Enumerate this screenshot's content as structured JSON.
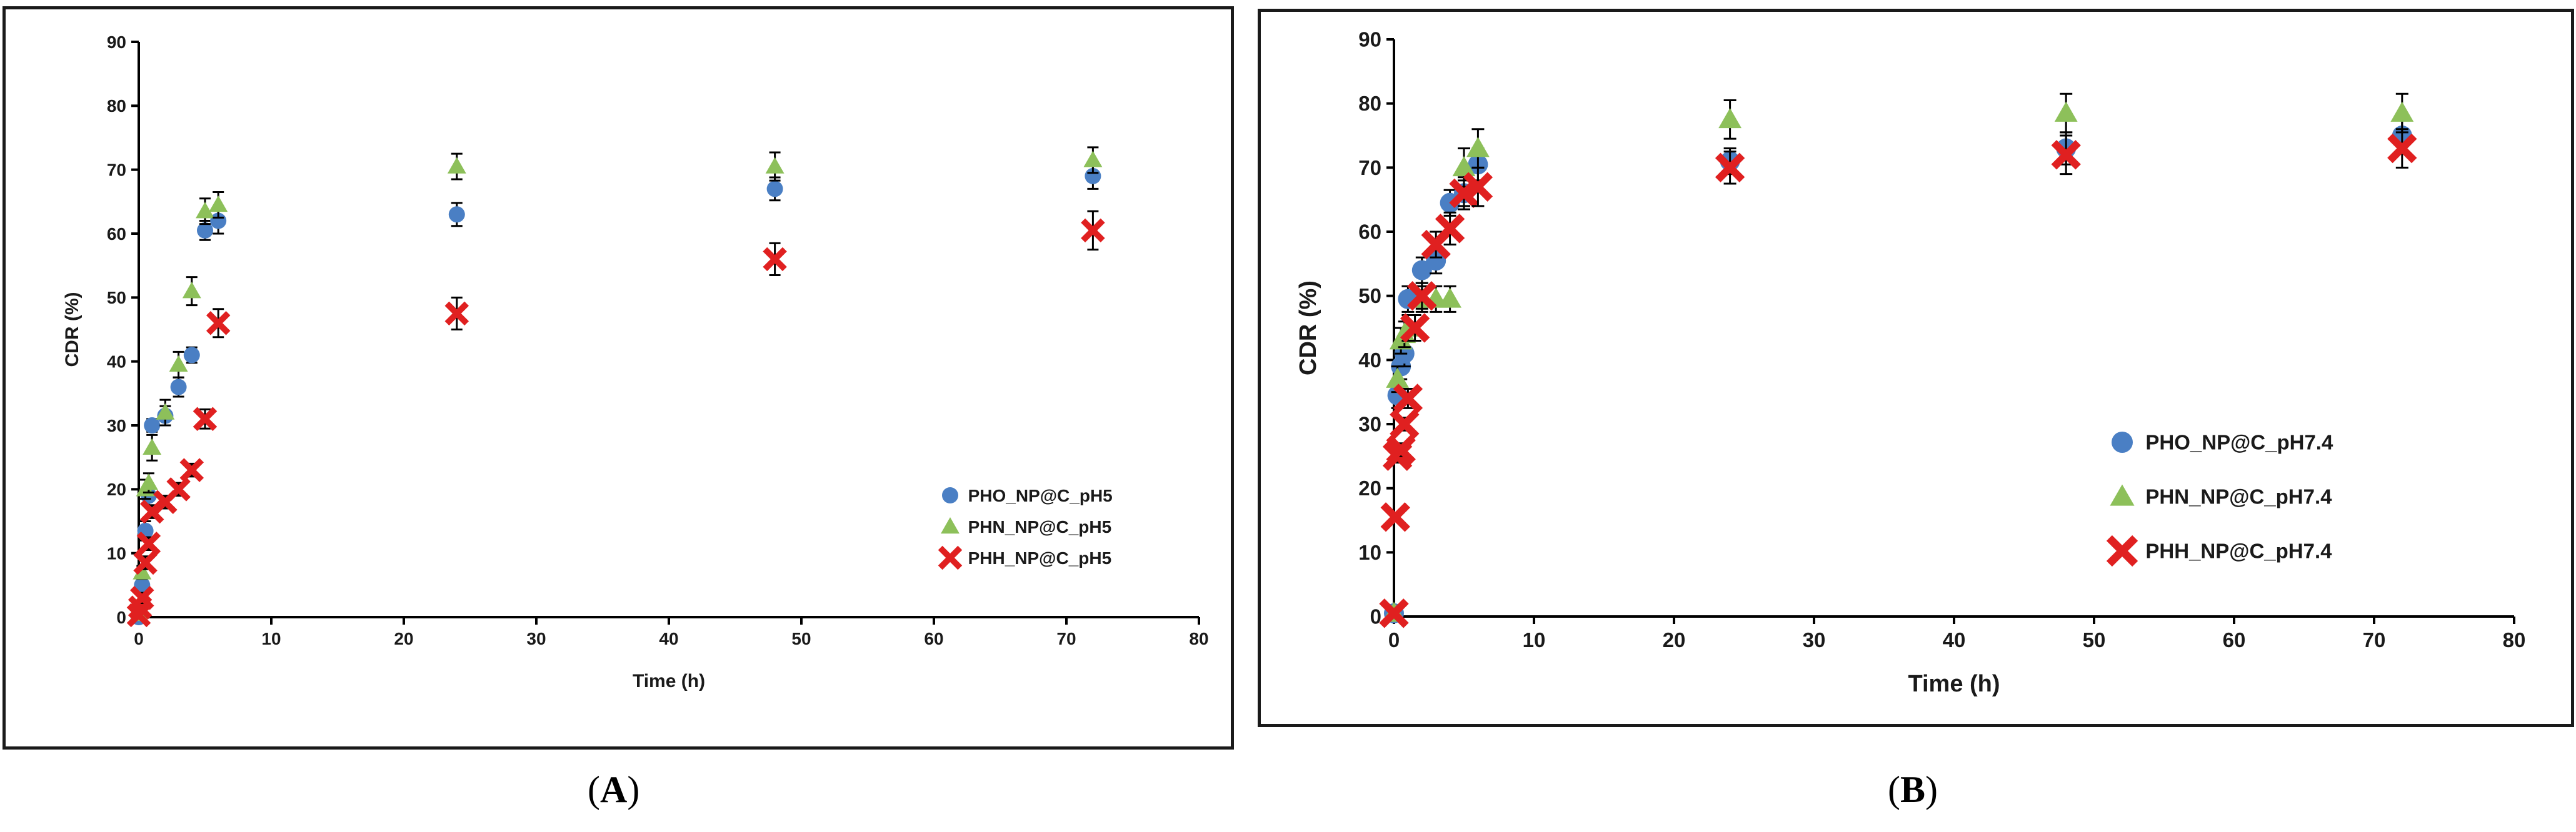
{
  "chart_data": [
    {
      "type": "scatter",
      "panel": "A",
      "xlabel": "Time (h)",
      "ylabel": "CDR (%)",
      "xlim": [
        0,
        80
      ],
      "ylim": [
        0,
        90
      ],
      "xticks": [
        0,
        10,
        20,
        30,
        40,
        50,
        60,
        70,
        80
      ],
      "yticks": [
        0,
        10,
        20,
        30,
        40,
        50,
        60,
        70,
        80,
        90
      ],
      "legend_position": "center-right",
      "series": [
        {
          "name": "PHO_NP@C_pH5",
          "marker": "circle",
          "color": "#4a7fc4",
          "points": [
            {
              "x": 0,
              "y": 0,
              "err": 0
            },
            {
              "x": 0.25,
              "y": 5,
              "err": 1
            },
            {
              "x": 0.5,
              "y": 13.5,
              "err": 1.5
            },
            {
              "x": 0.75,
              "y": 19,
              "err": 1.5
            },
            {
              "x": 1,
              "y": 30,
              "err": 1
            },
            {
              "x": 2,
              "y": 31.5,
              "err": 1.5
            },
            {
              "x": 3,
              "y": 36,
              "err": 1.5
            },
            {
              "x": 4,
              "y": 41,
              "err": 1.2
            },
            {
              "x": 5,
              "y": 60.5,
              "err": 1.5
            },
            {
              "x": 6,
              "y": 62,
              "err": 2
            },
            {
              "x": 24,
              "y": 63,
              "err": 1.8
            },
            {
              "x": 48,
              "y": 67,
              "err": 1.8
            },
            {
              "x": 72,
              "y": 69,
              "err": 2
            }
          ]
        },
        {
          "name": "PHN_NP@C_pH5",
          "marker": "triangle",
          "color": "#8dc05a",
          "points": [
            {
              "x": 0,
              "y": 0.5,
              "err": 0
            },
            {
              "x": 0.25,
              "y": 7,
              "err": 1
            },
            {
              "x": 0.5,
              "y": 20,
              "err": 1.5
            },
            {
              "x": 0.75,
              "y": 21,
              "err": 1.5
            },
            {
              "x": 1,
              "y": 26.5,
              "err": 2
            },
            {
              "x": 2,
              "y": 32,
              "err": 2
            },
            {
              "x": 3,
              "y": 39.5,
              "err": 2
            },
            {
              "x": 4,
              "y": 51,
              "err": 2.2
            },
            {
              "x": 5,
              "y": 63.5,
              "err": 2
            },
            {
              "x": 6,
              "y": 64.5,
              "err": 2
            },
            {
              "x": 24,
              "y": 70.5,
              "err": 2
            },
            {
              "x": 48,
              "y": 70.5,
              "err": 2.2
            },
            {
              "x": 72,
              "y": 71.5,
              "err": 2
            }
          ]
        },
        {
          "name": "PHH_NP@C_pH5",
          "marker": "x",
          "color": "#e02020",
          "points": [
            {
              "x": 0,
              "y": 0.3,
              "err": 0
            },
            {
              "x": 0.1,
              "y": 1.5,
              "err": 0.5
            },
            {
              "x": 0.25,
              "y": 3,
              "err": 0.8
            },
            {
              "x": 0.5,
              "y": 8.5,
              "err": 1
            },
            {
              "x": 0.75,
              "y": 11.5,
              "err": 1
            },
            {
              "x": 1,
              "y": 16.5,
              "err": 1
            },
            {
              "x": 2,
              "y": 18,
              "err": 1
            },
            {
              "x": 3,
              "y": 20,
              "err": 1
            },
            {
              "x": 4,
              "y": 23,
              "err": 1
            },
            {
              "x": 5,
              "y": 31,
              "err": 1.5
            },
            {
              "x": 6,
              "y": 46,
              "err": 2.2
            },
            {
              "x": 24,
              "y": 47.5,
              "err": 2.5
            },
            {
              "x": 48,
              "y": 56,
              "err": 2.5
            },
            {
              "x": 72,
              "y": 60.5,
              "err": 3
            }
          ]
        }
      ]
    },
    {
      "type": "scatter",
      "panel": "B",
      "xlabel": "Time (h)",
      "ylabel": "CDR (%)",
      "xlim": [
        0,
        80
      ],
      "ylim": [
        0,
        90
      ],
      "xticks": [
        0,
        10,
        20,
        30,
        40,
        50,
        60,
        70,
        80
      ],
      "yticks": [
        0,
        10,
        20,
        30,
        40,
        50,
        60,
        70,
        80,
        90
      ],
      "legend_position": "center-right",
      "series": [
        {
          "name": "PHO_NP@C_pH7.4",
          "marker": "circle",
          "color": "#4a7fc4",
          "points": [
            {
              "x": 0,
              "y": 0.5,
              "err": 0
            },
            {
              "x": 0.25,
              "y": 34.5,
              "err": 2
            },
            {
              "x": 0.5,
              "y": 39,
              "err": 2
            },
            {
              "x": 0.75,
              "y": 41,
              "err": 2
            },
            {
              "x": 1,
              "y": 49.5,
              "err": 2
            },
            {
              "x": 2,
              "y": 54,
              "err": 2
            },
            {
              "x": 3,
              "y": 55.5,
              "err": 2
            },
            {
              "x": 4,
              "y": 64.5,
              "err": 2
            },
            {
              "x": 5,
              "y": 66,
              "err": 2
            },
            {
              "x": 6,
              "y": 70.5,
              "err": 2.5
            },
            {
              "x": 24,
              "y": 71,
              "err": 2
            },
            {
              "x": 48,
              "y": 73,
              "err": 2.5
            },
            {
              "x": 72,
              "y": 75,
              "err": 2.5
            }
          ]
        },
        {
          "name": "PHN_NP@C_pH7.4",
          "marker": "triangle",
          "color": "#8dc05a",
          "points": [
            {
              "x": 0,
              "y": 0.5,
              "err": 0
            },
            {
              "x": 0.25,
              "y": 37,
              "err": 2
            },
            {
              "x": 0.5,
              "y": 43,
              "err": 2
            },
            {
              "x": 0.75,
              "y": 44,
              "err": 2
            },
            {
              "x": 1,
              "y": 45,
              "err": 2
            },
            {
              "x": 2,
              "y": 49.5,
              "err": 2
            },
            {
              "x": 3,
              "y": 49.5,
              "err": 2
            },
            {
              "x": 4,
              "y": 49.5,
              "err": 2
            },
            {
              "x": 5,
              "y": 70,
              "err": 3
            },
            {
              "x": 6,
              "y": 73,
              "err": 3
            },
            {
              "x": 24,
              "y": 77.5,
              "err": 3
            },
            {
              "x": 48,
              "y": 78.5,
              "err": 3
            },
            {
              "x": 72,
              "y": 78.5,
              "err": 3
            }
          ]
        },
        {
          "name": "PHH_NP@C_pH7.4",
          "marker": "x",
          "color": "#e02020",
          "points": [
            {
              "x": 0,
              "y": 0.5,
              "err": 0
            },
            {
              "x": 0.1,
              "y": 15.5,
              "err": 0.5
            },
            {
              "x": 0.25,
              "y": 25,
              "err": 1
            },
            {
              "x": 0.5,
              "y": 26,
              "err": 1
            },
            {
              "x": 0.75,
              "y": 30,
              "err": 1
            },
            {
              "x": 1,
              "y": 34,
              "err": 1.5
            },
            {
              "x": 1.5,
              "y": 45,
              "err": 2
            },
            {
              "x": 2,
              "y": 50,
              "err": 2
            },
            {
              "x": 3,
              "y": 58,
              "err": 2
            },
            {
              "x": 4,
              "y": 60.5,
              "err": 2.5
            },
            {
              "x": 5,
              "y": 66,
              "err": 2.5
            },
            {
              "x": 6,
              "y": 67,
              "err": 3
            },
            {
              "x": 24,
              "y": 70,
              "err": 2.5
            },
            {
              "x": 48,
              "y": 72,
              "err": 3
            },
            {
              "x": 72,
              "y": 73,
              "err": 3
            }
          ]
        }
      ]
    }
  ],
  "captions": [
    "A",
    "B"
  ]
}
